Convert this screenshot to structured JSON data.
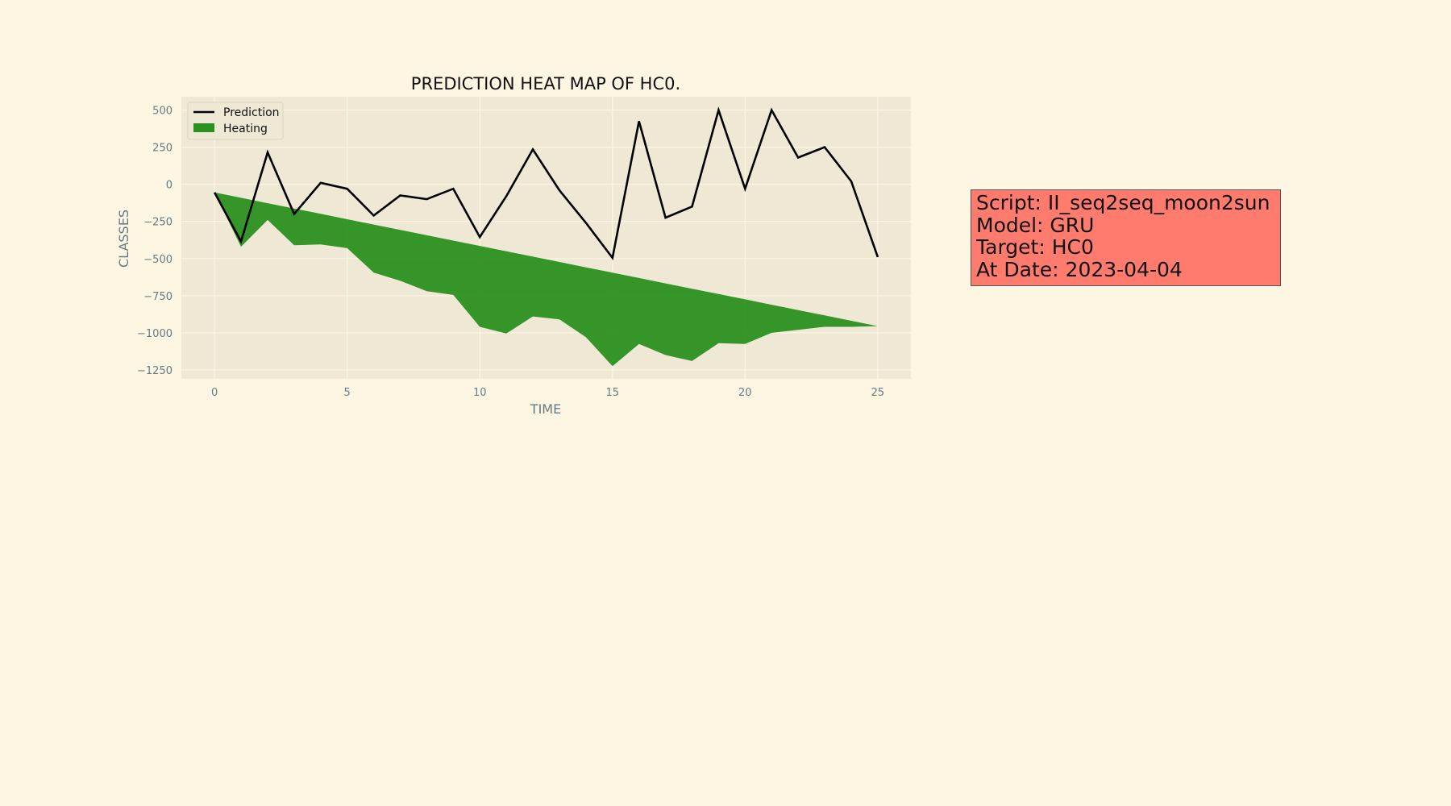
{
  "colors": {
    "page_background": "#fdf6e3",
    "plot_background": "#eee8d5",
    "grid": "#fdf6e3",
    "prediction_line": "#000000",
    "heating_fill": "#2a9020",
    "tick_text": "#657b83",
    "info_box_background": "#ff7b6e"
  },
  "chart_data": {
    "type": "line",
    "title": "PREDICTION HEAT MAP OF HC0.",
    "xlabel": "TIME",
    "ylabel": "CLASSES",
    "xlim": [
      -1.25,
      26.25
    ],
    "ylim": [
      -1310,
      590
    ],
    "x_ticks": [
      0,
      5,
      10,
      15,
      20,
      25
    ],
    "y_ticks": [
      500,
      250,
      0,
      -250,
      -500,
      -750,
      -1000,
      -1250
    ],
    "y_tick_labels": [
      "500",
      "250",
      "0",
      "−250",
      "−500",
      "−750",
      "−1000",
      "−1250"
    ],
    "grid": true,
    "legend_position": "top-left",
    "legend": [
      {
        "label": "Prediction",
        "kind": "line"
      },
      {
        "label": "Heating",
        "kind": "patch"
      }
    ],
    "x": [
      0,
      1,
      2,
      3,
      4,
      5,
      6,
      7,
      8,
      9,
      10,
      11,
      12,
      13,
      14,
      15,
      16,
      17,
      18,
      19,
      20,
      21,
      22,
      23,
      24,
      25
    ],
    "series": [
      {
        "name": "Prediction",
        "kind": "line",
        "values": [
          -55,
          -385,
          215,
          -200,
          10,
          -30,
          -210,
          -75,
          -100,
          -30,
          -355,
          -80,
          235,
          -40,
          -260,
          -495,
          425,
          -225,
          -150,
          500,
          -30,
          500,
          180,
          250,
          20,
          -490
        ]
      },
      {
        "name": "Heating",
        "kind": "fill_between",
        "upper": [
          -55,
          -91,
          -127,
          -163,
          -199,
          -235,
          -271,
          -307,
          -343,
          -379,
          -415,
          -451,
          -487,
          -523,
          -559,
          -595,
          -631,
          -667,
          -703,
          -739,
          -775,
          -811,
          -847,
          -883,
          -919,
          -955
        ],
        "lower": [
          -55,
          -420,
          -240,
          -410,
          -405,
          -430,
          -595,
          -650,
          -720,
          -745,
          -960,
          -1005,
          -890,
          -910,
          -1030,
          -1225,
          -1075,
          -1150,
          -1190,
          -1070,
          -1075,
          -1000,
          -980,
          -960,
          -960,
          -955
        ]
      }
    ]
  },
  "info_box": {
    "script": "Script: II_seq2seq_moon2sun",
    "model": "Model: GRU",
    "target": "Target: HC0",
    "date": "At Date: 2023-04-04"
  }
}
